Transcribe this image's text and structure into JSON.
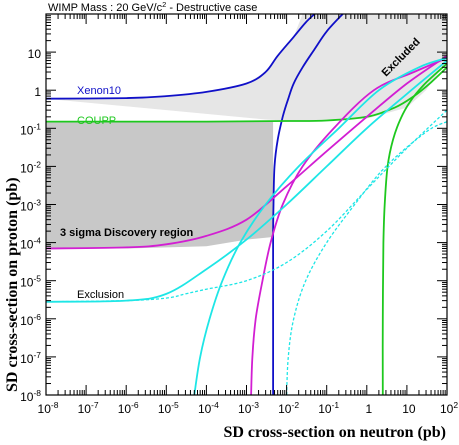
{
  "chart_data": {
    "type": "line",
    "title": "WIMP Mass : 20 GeV/c",
    "title_superscript": "2",
    "title_suffix": " - Destructive case",
    "xlabel": "SD cross-section on neutron (pb)",
    "ylabel": "SD cross-section on proton (pb)",
    "x_scale": "log",
    "y_scale": "log",
    "xlim": [
      1e-08,
      100
    ],
    "ylim": [
      1e-08,
      100
    ],
    "grid": false,
    "x_tick_labels": [
      {
        "base": "10",
        "exp": "-8"
      },
      {
        "base": "10",
        "exp": "-7"
      },
      {
        "base": "10",
        "exp": "-6"
      },
      {
        "base": "10",
        "exp": "-5"
      },
      {
        "base": "10",
        "exp": "-4"
      },
      {
        "base": "10",
        "exp": "-3"
      },
      {
        "base": "10",
        "exp": "-2"
      },
      {
        "base": "10",
        "exp": "-1"
      },
      {
        "base": "1",
        "exp": ""
      },
      {
        "base": "10",
        "exp": ""
      },
      {
        "base": "10",
        "exp": "2"
      }
    ],
    "y_tick_labels": [
      {
        "base": "10",
        "exp": "-8"
      },
      {
        "base": "10",
        "exp": "-7"
      },
      {
        "base": "10",
        "exp": "-6"
      },
      {
        "base": "10",
        "exp": "-5"
      },
      {
        "base": "10",
        "exp": "-4"
      },
      {
        "base": "10",
        "exp": "-3"
      },
      {
        "base": "10",
        "exp": "-2"
      },
      {
        "base": "10",
        "exp": "-1"
      },
      {
        "base": "1",
        "exp": ""
      },
      {
        "base": "10",
        "exp": ""
      }
    ],
    "annotations": {
      "xenon": {
        "text": "Xenon10",
        "color": "#1010c8"
      },
      "coupp": {
        "text": "COUPP",
        "color": "#1ec81e"
      },
      "excluded": {
        "text": "Excluded",
        "color": "#000000"
      },
      "discovery": {
        "text": "3 sigma Discovery region",
        "color": "#000000"
      },
      "exclusion": {
        "text": "Exclusion",
        "color": "#000000"
      }
    },
    "colors": {
      "excluded_region": "#e6e6e6",
      "discovery_region": "#c8c8c8",
      "xenon10": "#1010c8",
      "coupp": "#1ec81e",
      "discovery_contour": "#d21ed2",
      "exclusion_contour": "#1ee6e6"
    },
    "regions": [
      {
        "name": "Excluded",
        "color": "#e6e6e6",
        "boundary": [
          [
            1e-08,
            0.6
          ],
          [
            1e-06,
            0.62
          ],
          [
            1e-05,
            0.7
          ],
          [
            0.0001,
            0.9
          ],
          [
            0.001,
            1.5
          ],
          [
            0.003,
            3
          ],
          [
            0.006,
            8
          ],
          [
            0.015,
            25
          ],
          [
            0.025,
            100
          ],
          [
            100,
            100
          ],
          [
            100,
            6
          ],
          [
            30,
            1
          ],
          [
            10,
            0.35
          ],
          [
            1,
            0.18
          ],
          [
            0.1,
            0.16
          ],
          [
            0.01,
            0.16
          ],
          [
            0.003,
            0.17
          ]
        ]
      },
      {
        "name": "3 sigma Discovery region",
        "color": "#c8c8c8",
        "boundary": [
          [
            1e-08,
            0.15
          ],
          [
            0.0046,
            0.15
          ],
          [
            0.0046,
            0.00014
          ],
          [
            0.001,
            0.00012
          ],
          [
            0.0001,
            8e-05
          ],
          [
            1e-06,
            7e-05
          ],
          [
            1e-08,
            7e-05
          ]
        ]
      }
    ],
    "series": [
      {
        "name": "Xenon10",
        "color": "#1010c8",
        "style": "solid",
        "points": [
          [
            1e-08,
            0.6
          ],
          [
            1e-06,
            0.62
          ],
          [
            1e-05,
            0.7
          ],
          [
            0.0001,
            0.9
          ],
          [
            0.001,
            1.5
          ],
          [
            0.003,
            3
          ],
          [
            0.006,
            8
          ],
          [
            0.015,
            25
          ],
          [
            0.03,
            60
          ],
          [
            0.05,
            100
          ]
        ]
      },
      {
        "color": "#1010c8",
        "style": "solid",
        "points": [
          [
            0.0046,
            1e-08
          ],
          [
            0.0046,
            1e-06
          ],
          [
            0.0046,
            0.0001
          ],
          [
            0.0047,
            0.001
          ],
          [
            0.005,
            0.01
          ],
          [
            0.006,
            0.05
          ],
          [
            0.008,
            0.2
          ],
          [
            0.011,
            0.6
          ],
          [
            0.015,
            1.5
          ],
          [
            0.025,
            4
          ],
          [
            0.05,
            12
          ],
          [
            0.1,
            35
          ],
          [
            0.25,
            100
          ]
        ]
      },
      {
        "name": "COUPP",
        "color": "#1ec81e",
        "style": "solid",
        "points": [
          [
            1e-08,
            0.15
          ],
          [
            0.0001,
            0.15
          ],
          [
            0.01,
            0.155
          ],
          [
            0.1,
            0.16
          ],
          [
            1,
            0.2
          ],
          [
            5,
            0.35
          ],
          [
            15,
            0.7
          ],
          [
            40,
            1.6
          ],
          [
            100,
            4
          ]
        ]
      },
      {
        "color": "#1ec81e",
        "style": "solid",
        "points": [
          [
            2.5,
            1e-08
          ],
          [
            2.5,
            1e-06
          ],
          [
            2.6,
            0.0001
          ],
          [
            2.8,
            0.001
          ],
          [
            3.3,
            0.01
          ],
          [
            4.5,
            0.05
          ],
          [
            7,
            0.18
          ],
          [
            12,
            0.5
          ],
          [
            25,
            1.3
          ],
          [
            50,
            2.6
          ],
          [
            100,
            5
          ]
        ]
      },
      {
        "color": "#d21ed2",
        "style": "solid",
        "points": [
          [
            1e-08,
            7e-05
          ],
          [
            1e-06,
            7.5e-05
          ],
          [
            1e-05,
            9e-05
          ],
          [
            0.0001,
            0.00015
          ],
          [
            0.001,
            0.0004
          ],
          [
            0.01,
            0.003
          ],
          [
            0.1,
            0.025
          ],
          [
            1,
            0.2
          ],
          [
            10,
            1.5
          ],
          [
            100,
            8
          ]
        ]
      },
      {
        "color": "#d21ed2",
        "style": "solid",
        "points": [
          [
            0.0013,
            1e-08
          ],
          [
            0.0014,
            1e-07
          ],
          [
            0.0017,
            1e-06
          ],
          [
            0.0025,
            1e-05
          ],
          [
            0.004,
            0.0001
          ],
          [
            0.008,
            0.001
          ],
          [
            0.025,
            0.01
          ],
          [
            0.15,
            0.1
          ],
          [
            1.5,
            1
          ],
          [
            15,
            3
          ],
          [
            100,
            7
          ]
        ]
      },
      {
        "color": "#1ee6e6",
        "style": "solid",
        "points": [
          [
            1e-08,
            2.8e-06
          ],
          [
            1e-06,
            3e-06
          ],
          [
            1e-05,
            4.5e-06
          ],
          [
            0.0001,
            2e-05
          ],
          [
            0.001,
            0.00012
          ],
          [
            0.01,
            0.001
          ],
          [
            0.1,
            0.01
          ],
          [
            1,
            0.1
          ],
          [
            10,
            0.8
          ],
          [
            100,
            6
          ]
        ]
      },
      {
        "color": "#1ee6e6",
        "style": "solid",
        "points": [
          [
            5e-05,
            1e-08
          ],
          [
            7e-05,
            1e-07
          ],
          [
            0.00012,
            1e-06
          ],
          [
            0.00025,
            1e-05
          ],
          [
            0.0007,
            0.0001
          ],
          [
            0.003,
            0.001
          ],
          [
            0.02,
            0.01
          ],
          [
            0.2,
            0.1
          ],
          [
            2,
            1
          ],
          [
            20,
            4
          ],
          [
            100,
            7
          ]
        ]
      },
      {
        "color": "#1ee6e6",
        "style": "dashed",
        "points": [
          [
            1e-08,
            2.8e-06
          ],
          [
            1e-06,
            3e-06
          ],
          [
            1e-05,
            3.5e-06
          ],
          [
            3e-05,
            4.5e-06
          ],
          [
            0.0001,
            6e-06
          ],
          [
            0.001,
            1e-05
          ],
          [
            0.01,
            3e-05
          ],
          [
            0.1,
            0.0002
          ],
          [
            1,
            0.0025
          ],
          [
            10,
            0.03
          ],
          [
            100,
            0.3
          ]
        ]
      },
      {
        "color": "#1ee6e6",
        "style": "dashed",
        "points": [
          [
            0.01,
            1e-08
          ],
          [
            0.011,
            1e-07
          ],
          [
            0.015,
            1e-06
          ],
          [
            0.03,
            1e-05
          ],
          [
            0.1,
            0.0001
          ],
          [
            0.5,
            0.001
          ],
          [
            3,
            0.01
          ],
          [
            30,
            0.08
          ],
          [
            100,
            0.15
          ]
        ]
      }
    ]
  }
}
